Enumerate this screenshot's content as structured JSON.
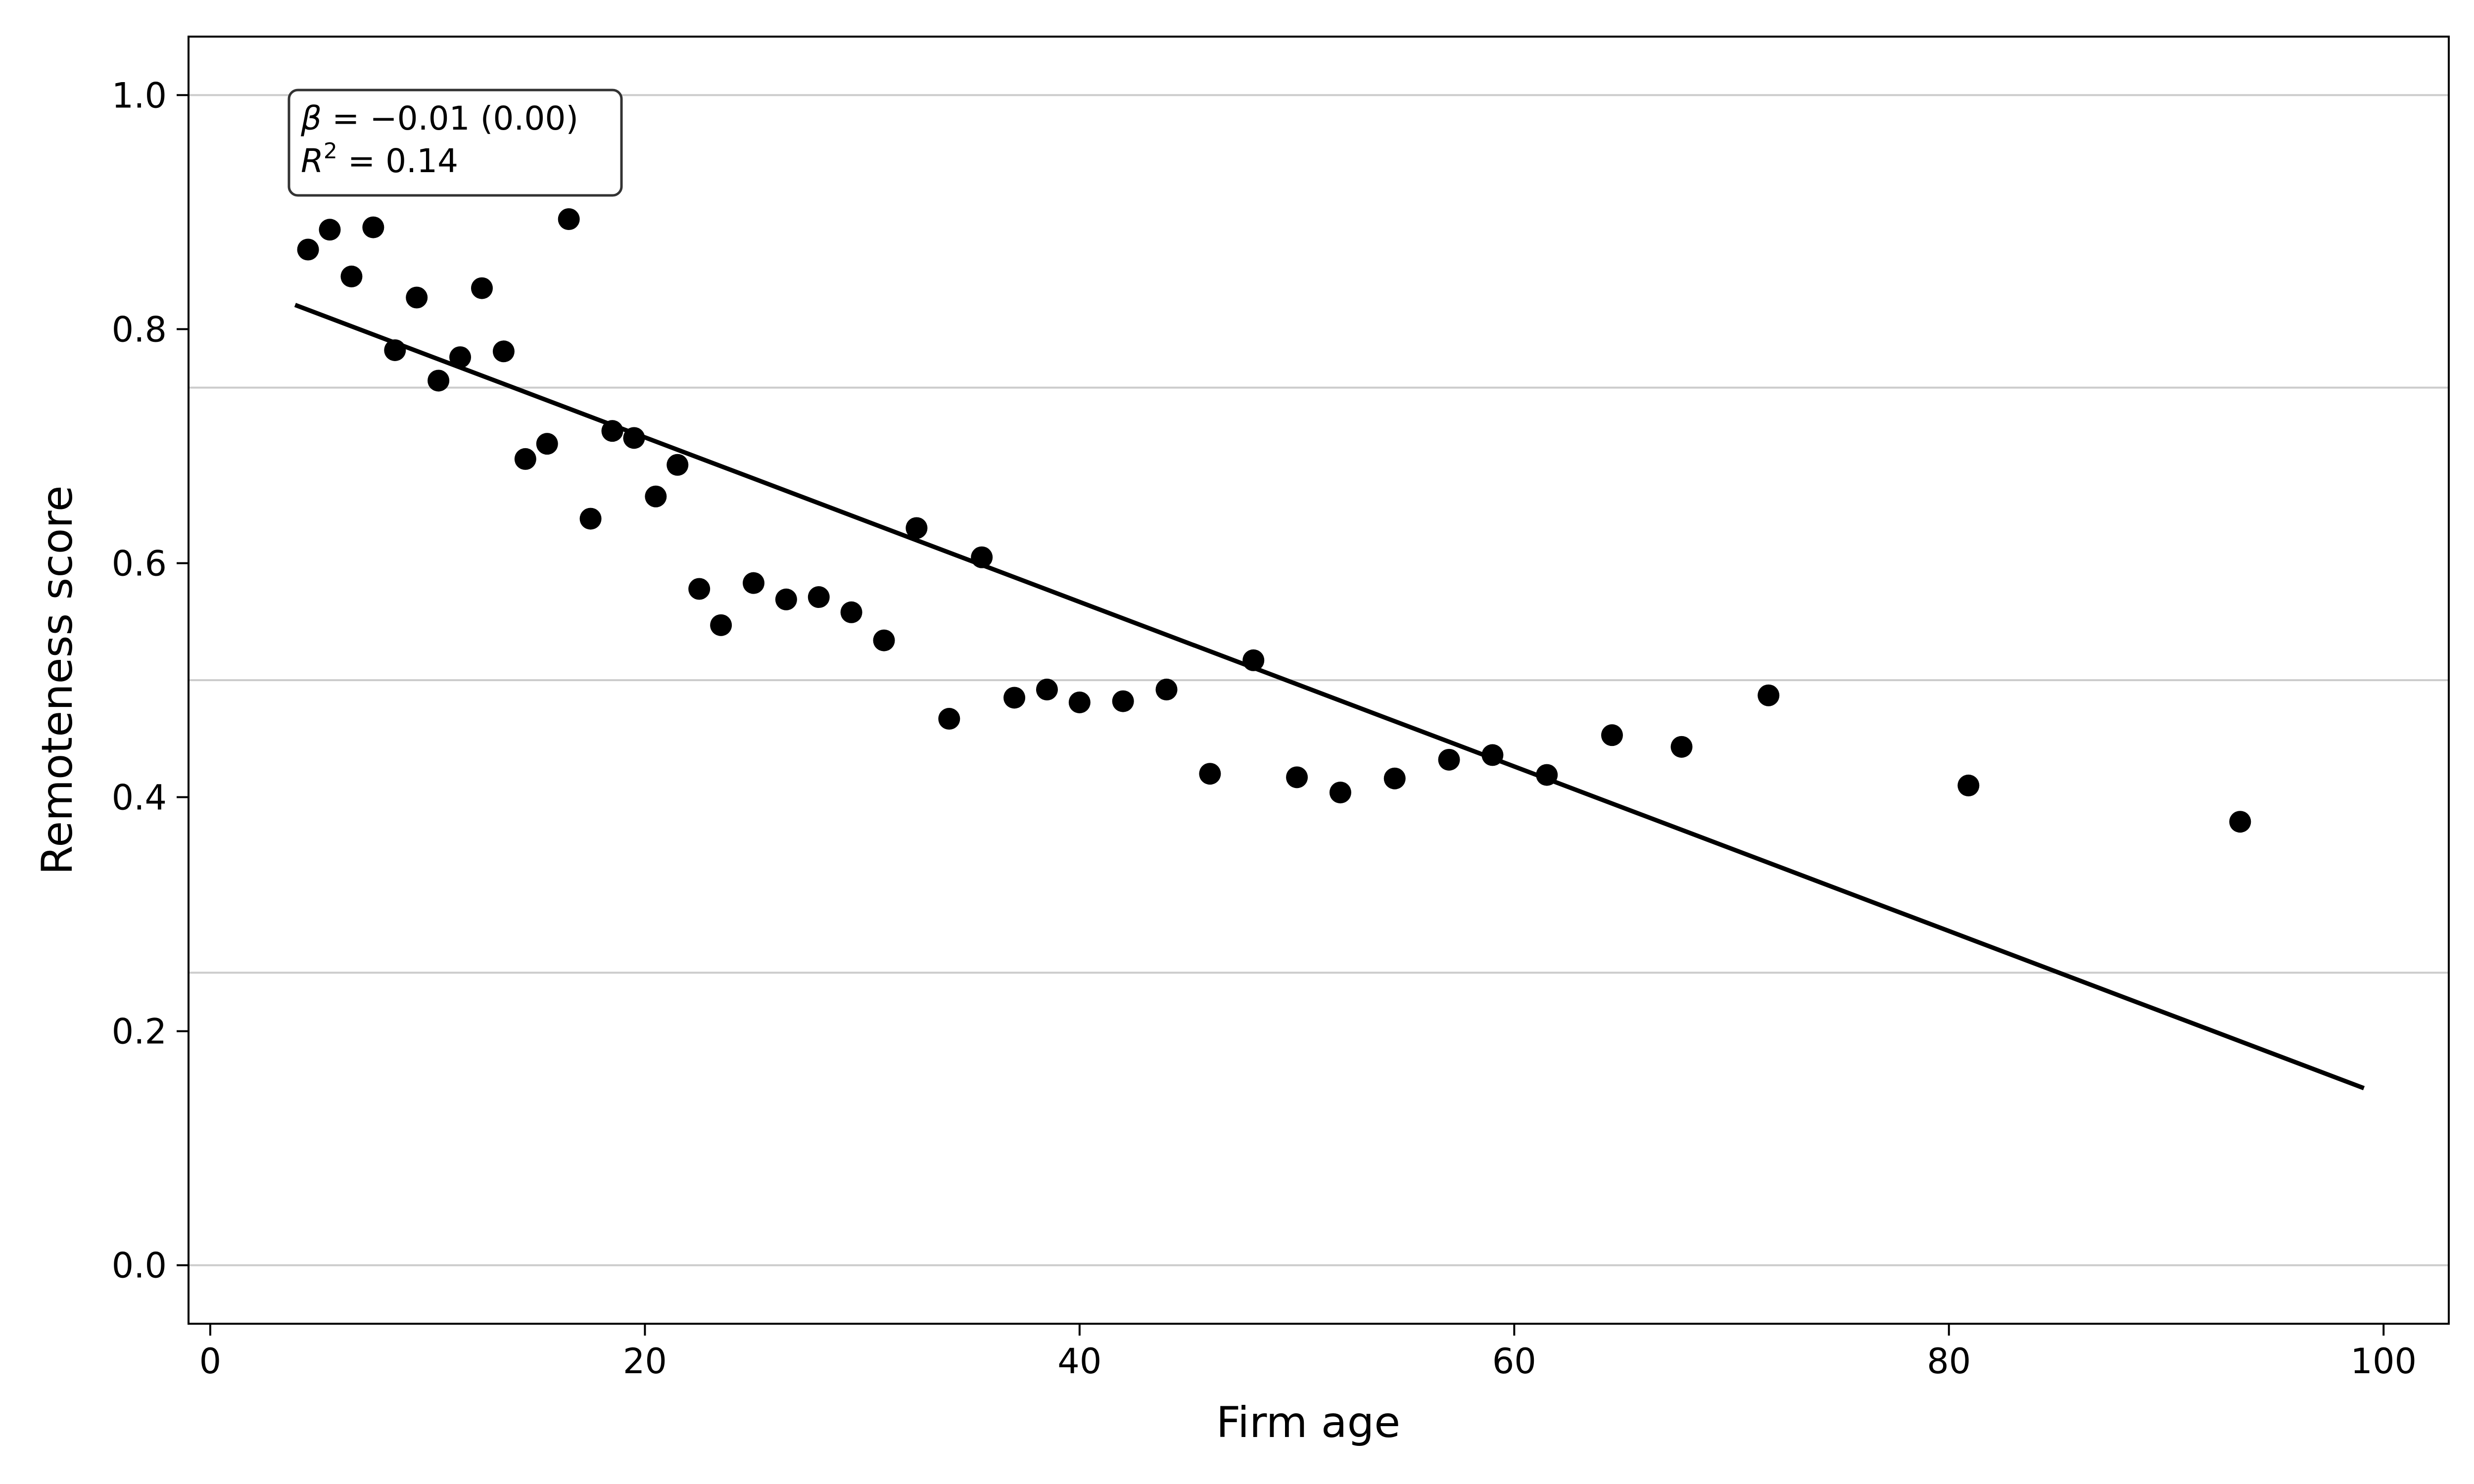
{
  "chart_data": {
    "type": "scatter",
    "title": "",
    "xlabel": "Firm age",
    "ylabel": "Remoteness score",
    "xlim": [
      -1,
      103
    ],
    "ylim": [
      -0.05,
      1.05
    ],
    "xticks": [
      0,
      20,
      40,
      60,
      80,
      100
    ],
    "yticks": [
      0.0,
      0.2,
      0.4,
      0.6,
      0.8,
      1.0
    ],
    "xtick_labels": [
      "0",
      "20",
      "40",
      "60",
      "80",
      "100"
    ],
    "ytick_labels": [
      "0.0",
      "0.2",
      "0.4",
      "0.6",
      "0.8",
      "1.0"
    ],
    "gridlines_y": [
      0.0,
      0.25,
      0.5,
      0.75,
      1.0
    ],
    "grid": "horizontal",
    "colors": {
      "points": "#000000",
      "fit_line": "#000000",
      "grid": "#cccccc",
      "axes": "#000000"
    },
    "annotation": {
      "position": "top-left",
      "beta_symbol": "β",
      "beta_text": " = −0.01 (0.00)",
      "r2_symbol": "R",
      "r2_sup": "2",
      "r2_text": " = 0.14"
    },
    "fit_line": {
      "x": [
        4,
        99
      ],
      "y": [
        0.82,
        0.152
      ]
    },
    "points": [
      {
        "x": 4.5,
        "y": 0.868
      },
      {
        "x": 5.5,
        "y": 0.885
      },
      {
        "x": 6.5,
        "y": 0.845
      },
      {
        "x": 7.5,
        "y": 0.887
      },
      {
        "x": 8.5,
        "y": 0.782
      },
      {
        "x": 9.5,
        "y": 0.827
      },
      {
        "x": 10.5,
        "y": 0.756
      },
      {
        "x": 11.5,
        "y": 0.776
      },
      {
        "x": 12.5,
        "y": 0.835
      },
      {
        "x": 13.5,
        "y": 0.781
      },
      {
        "x": 14.5,
        "y": 0.689
      },
      {
        "x": 15.5,
        "y": 0.702
      },
      {
        "x": 16.5,
        "y": 0.894
      },
      {
        "x": 17.5,
        "y": 0.638
      },
      {
        "x": 18.5,
        "y": 0.713
      },
      {
        "x": 19.5,
        "y": 0.707
      },
      {
        "x": 20.5,
        "y": 0.657
      },
      {
        "x": 21.5,
        "y": 0.684
      },
      {
        "x": 22.5,
        "y": 0.578
      },
      {
        "x": 23.5,
        "y": 0.547
      },
      {
        "x": 25.0,
        "y": 0.583
      },
      {
        "x": 26.5,
        "y": 0.569
      },
      {
        "x": 28.0,
        "y": 0.571
      },
      {
        "x": 29.5,
        "y": 0.558
      },
      {
        "x": 31.0,
        "y": 0.534
      },
      {
        "x": 32.5,
        "y": 0.63
      },
      {
        "x": 34.0,
        "y": 0.467
      },
      {
        "x": 35.5,
        "y": 0.605
      },
      {
        "x": 37.0,
        "y": 0.485
      },
      {
        "x": 38.5,
        "y": 0.492
      },
      {
        "x": 40.0,
        "y": 0.481
      },
      {
        "x": 42.0,
        "y": 0.482
      },
      {
        "x": 44.0,
        "y": 0.492
      },
      {
        "x": 46.0,
        "y": 0.42
      },
      {
        "x": 48.0,
        "y": 0.517
      },
      {
        "x": 50.0,
        "y": 0.417
      },
      {
        "x": 52.0,
        "y": 0.404
      },
      {
        "x": 54.5,
        "y": 0.416
      },
      {
        "x": 57.0,
        "y": 0.432
      },
      {
        "x": 59.0,
        "y": 0.436
      },
      {
        "x": 61.5,
        "y": 0.419
      },
      {
        "x": 64.5,
        "y": 0.453
      },
      {
        "x": 67.7,
        "y": 0.443
      },
      {
        "x": 71.7,
        "y": 0.487
      },
      {
        "x": 80.9,
        "y": 0.41
      },
      {
        "x": 93.4,
        "y": 0.379
      }
    ]
  }
}
